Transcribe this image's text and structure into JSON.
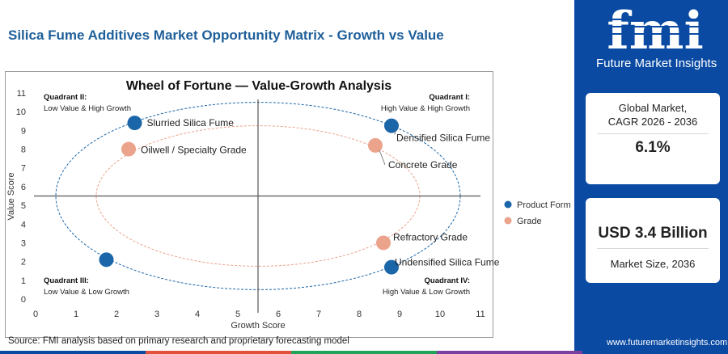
{
  "page": {
    "title": "Silica Fume Additives Market Opportunity Matrix - Growth vs Value",
    "source": "Source: FMI analysis based on primary research and proprietary forecasting model",
    "website": "www.futuremarketinsights.com"
  },
  "logo": {
    "letters": "fmi",
    "tagline": "Future Market Insights"
  },
  "cards": {
    "cagr": {
      "label_line1": "Global Market,",
      "label_line2": "CAGR 2026 - 2036",
      "value": "6.1%"
    },
    "size": {
      "value": "USD 3.4 Billion",
      "label": "Market Size, 2036"
    }
  },
  "colors": {
    "title": "#1f5f9a",
    "product_form": "#1b66a8",
    "grade": "#eba38c",
    "panel": "#0a4aa3",
    "bottom_bar": [
      "#0a4aa3",
      "#e2513b",
      "#22a35a",
      "#7a3fa0",
      "#0a4aa3"
    ]
  },
  "chart_data": {
    "type": "scatter",
    "title": "Wheel of Fortune — Value-Growth Analysis",
    "xlabel": "Growth Score",
    "ylabel": "Value Score",
    "xlim": [
      0,
      11
    ],
    "ylim": [
      0,
      11
    ],
    "xticks": [
      0,
      1,
      2,
      3,
      4,
      5,
      6,
      7,
      8,
      9,
      10,
      11
    ],
    "yticks": [
      0,
      1,
      2,
      3,
      4,
      5,
      6,
      7,
      8,
      9,
      10,
      11
    ],
    "dividers": {
      "x": 5.5,
      "y": 5.5
    },
    "quadrants": [
      {
        "name": "Quadrant II:",
        "desc": "Low Value & High Growth",
        "pos": "top-left"
      },
      {
        "name": "Quadrant I:",
        "desc": "High Value & High Growth",
        "pos": "top-right"
      },
      {
        "name": "Quadrant III:",
        "desc": "Low Value & Low Growth",
        "pos": "bottom-left"
      },
      {
        "name": "Quadrant IV:",
        "desc": "High Value & Low Growth",
        "pos": "bottom-right"
      }
    ],
    "legend": {
      "placement": "right",
      "entries": [
        "Product Form",
        "Grade"
      ]
    },
    "series": [
      {
        "name": "Product Form",
        "points": [
          {
            "label": "Slurried Silica Fume",
            "x": 2.45,
            "y": 9.4
          },
          {
            "label": "Densified Silica Fume",
            "x": 8.8,
            "y": 9.25
          },
          {
            "label": "Undensified Silica Fume",
            "x": 8.8,
            "y": 1.7
          },
          {
            "label": "",
            "x": 1.75,
            "y": 2.1
          }
        ]
      },
      {
        "name": "Grade",
        "points": [
          {
            "label": "Oilwell / Specialty Grade",
            "x": 2.3,
            "y": 8.0
          },
          {
            "label": "Concrete Grade",
            "x": 8.4,
            "y": 8.2
          },
          {
            "label": "Refractory Grade",
            "x": 8.6,
            "y": 3.0
          }
        ]
      }
    ],
    "ellipses": [
      {
        "series": "Product Form",
        "cx": 5.5,
        "cy": 5.5,
        "rx": 5.0,
        "ry": 5.0
      },
      {
        "series": "Grade",
        "cx": 5.5,
        "cy": 5.5,
        "rx": 4.0,
        "ry": 3.75
      }
    ]
  }
}
